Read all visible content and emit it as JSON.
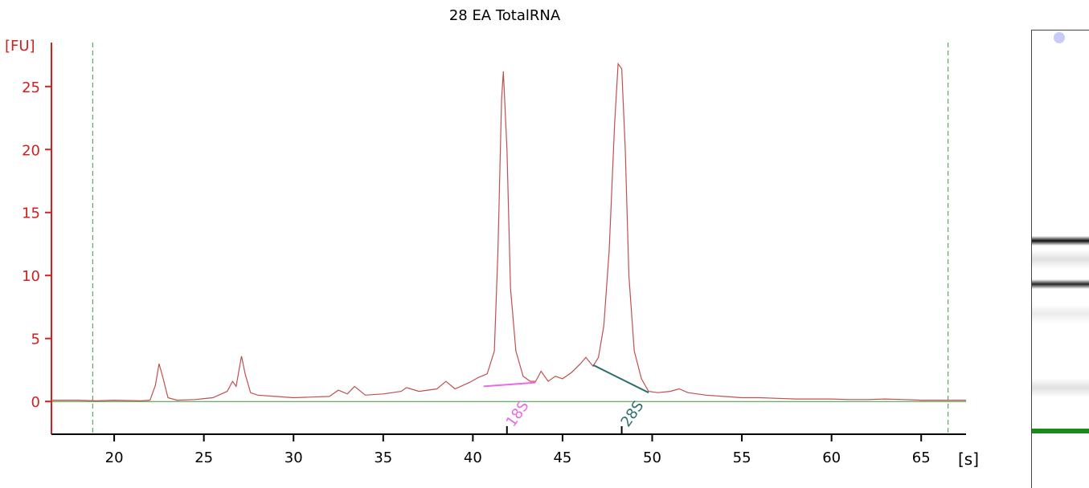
{
  "chart_data": {
    "type": "line",
    "title": "28 EA TotalRNA",
    "ylabel": "[FU]",
    "xlabel": "[s]",
    "xlim": [
      16.5,
      67.5
    ],
    "ylim": [
      -2.6,
      29
    ],
    "x_ticks": [
      "20",
      "25",
      "30",
      "35",
      "40",
      "45",
      "50",
      "55",
      "60",
      "65"
    ],
    "y_ticks": [
      "0",
      "5",
      "10",
      "15",
      "20",
      "25"
    ],
    "grid": false,
    "vertical_markers": [
      18.8,
      66.5
    ],
    "peak_annotations": [
      {
        "label": "18S",
        "x": 41.9,
        "color": "#e86be8",
        "baseline": [
          [
            40.6,
            1.2
          ],
          [
            43.5,
            1.5
          ]
        ]
      },
      {
        "label": "28S",
        "x": 48.3,
        "color": "#2e7070",
        "baseline": [
          [
            46.7,
            2.9
          ],
          [
            49.8,
            0.7
          ]
        ]
      }
    ],
    "series": [
      {
        "color": "#c0504d",
        "x": [
          16.5,
          18.0,
          19.0,
          20.0,
          21.5,
          22.0,
          22.3,
          22.5,
          22.7,
          23.0,
          23.5,
          24.5,
          25.5,
          26.3,
          26.6,
          26.8,
          27.0,
          27.1,
          27.3,
          27.6,
          28.0,
          29.0,
          30.0,
          31.0,
          32.0,
          32.5,
          33.0,
          33.4,
          34.0,
          35.0,
          36.0,
          36.3,
          37.0,
          38.0,
          38.5,
          39.0,
          39.8,
          40.3,
          40.8,
          41.2,
          41.4,
          41.6,
          41.7,
          41.9,
          42.1,
          42.4,
          42.8,
          43.2,
          43.5,
          43.8,
          44.2,
          44.6,
          45.0,
          45.5,
          46.0,
          46.3,
          46.7,
          47.0,
          47.3,
          47.6,
          47.9,
          48.1,
          48.3,
          48.5,
          48.7,
          49.0,
          49.4,
          49.8,
          50.3,
          51.0,
          51.5,
          52.0,
          53.0,
          54.0,
          55.0,
          56.0,
          57.0,
          58.0,
          59.0,
          60.0,
          61.0,
          62.0,
          63.0,
          64.0,
          65.0,
          66.0,
          67.5
        ],
        "y": [
          0.1,
          0.1,
          0.05,
          0.1,
          0.05,
          0.1,
          1.3,
          3.0,
          2.0,
          0.3,
          0.1,
          0.15,
          0.3,
          0.8,
          1.6,
          1.2,
          2.8,
          3.6,
          2.2,
          0.7,
          0.5,
          0.4,
          0.3,
          0.35,
          0.4,
          0.9,
          0.6,
          1.2,
          0.5,
          0.6,
          0.8,
          1.1,
          0.8,
          1.0,
          1.6,
          1.0,
          1.5,
          1.9,
          2.2,
          4.0,
          12.0,
          24.0,
          26.2,
          20.0,
          9.0,
          4.0,
          2.0,
          1.6,
          1.6,
          2.4,
          1.6,
          2.0,
          1.8,
          2.3,
          3.0,
          3.5,
          2.8,
          3.5,
          6.0,
          12.0,
          22.0,
          26.8,
          26.4,
          20.0,
          10.0,
          4.0,
          1.8,
          0.8,
          0.7,
          0.8,
          1.0,
          0.7,
          0.5,
          0.4,
          0.3,
          0.3,
          0.25,
          0.2,
          0.2,
          0.2,
          0.15,
          0.15,
          0.2,
          0.15,
          0.1,
          0.1,
          0.1
        ]
      }
    ],
    "baseline_color": "#3a9a3a",
    "marker_color": "#3a9a3a",
    "axis_y_color": "#d22020",
    "axis_x_color": "#000000"
  },
  "gel": {
    "background": "#ffffff",
    "marker_band_color": "#1a8a1a",
    "bands": [
      {
        "position": 0.46,
        "intensity": 0.95
      },
      {
        "position": 0.555,
        "intensity": 0.85
      },
      {
        "position": 0.5,
        "intensity": 0.12
      },
      {
        "position": 0.62,
        "intensity": 0.08
      },
      {
        "position": 0.78,
        "intensity": 0.12
      }
    ],
    "marker_band_position": 0.87
  }
}
